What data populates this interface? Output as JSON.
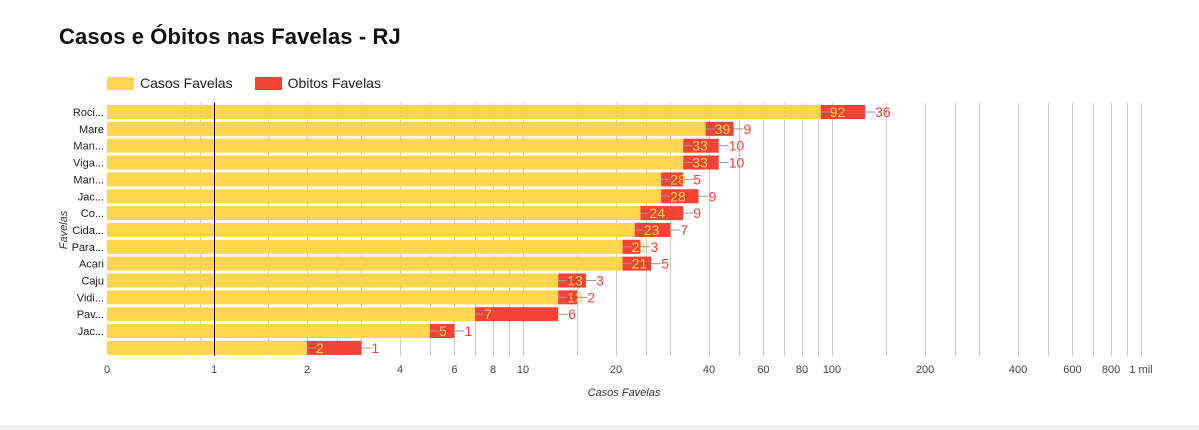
{
  "chart_data": {
    "type": "bar",
    "orientation": "horizontal",
    "stacked": true,
    "title": "Casos e Óbitos nas Favelas - RJ",
    "xlabel": "Casos Favelas",
    "ylabel": "Favelas",
    "x_scale": "log",
    "xlim": [
      0,
      1000
    ],
    "baseline": 1,
    "grid": true,
    "legend_position": "top-left",
    "x_ticks": [
      {
        "value": 0,
        "label": "0"
      },
      {
        "value": 1,
        "label": "1"
      },
      {
        "value": 2,
        "label": "2"
      },
      {
        "value": 4,
        "label": "4"
      },
      {
        "value": 6,
        "label": "6"
      },
      {
        "value": 8,
        "label": "8"
      },
      {
        "value": 10,
        "label": "10"
      },
      {
        "value": 20,
        "label": "20"
      },
      {
        "value": 40,
        "label": "40"
      },
      {
        "value": 60,
        "label": "60"
      },
      {
        "value": 80,
        "label": "80"
      },
      {
        "value": 100,
        "label": "100"
      },
      {
        "value": 200,
        "label": "200"
      },
      {
        "value": 400,
        "label": "400"
      },
      {
        "value": 600,
        "label": "600"
      },
      {
        "value": 800,
        "label": "800"
      },
      {
        "value": 1000,
        "label": "1 mil"
      }
    ],
    "categories": [
      "Roci...",
      "Mare",
      "Man...",
      "Viga...",
      "Man...",
      "Jac...",
      "Co...",
      "Cida...",
      "Para...",
      "Acari",
      "Caju",
      "Vidi...",
      "Pav...",
      "Jac...",
      ""
    ],
    "series": [
      {
        "name": "Casos Favelas",
        "color": "#fdd54f",
        "label_color": "#fdd54f",
        "values": [
          92,
          39,
          33,
          33,
          28,
          28,
          24,
          23,
          21,
          21,
          13,
          13,
          7,
          5,
          2
        ]
      },
      {
        "name": "Obitos Favelas",
        "color": "#f44336",
        "label_color": "#f44336",
        "values": [
          36,
          9,
          10,
          10,
          5,
          9,
          9,
          7,
          3,
          5,
          3,
          2,
          6,
          1,
          1
        ]
      }
    ]
  },
  "colors": {
    "casos": "#fdd54f",
    "obitos": "#f44336",
    "grid": "#cccccc",
    "baseline": "#000000",
    "leader": "#999999",
    "axis_text": "#444444"
  }
}
